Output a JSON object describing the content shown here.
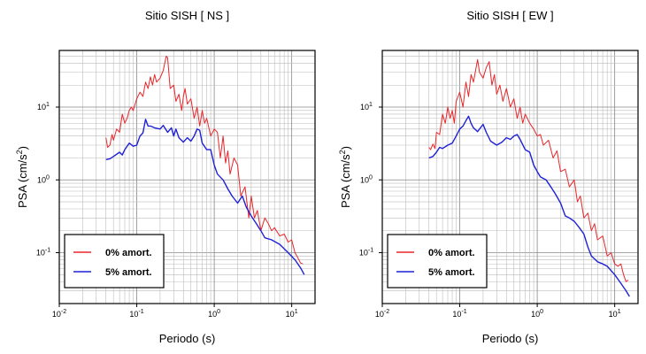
{
  "chart_data": [
    {
      "type": "line",
      "title": "Sitio SISH [ NS ]",
      "xlabel": "Periodo (s)",
      "ylabel": "PSA (cm/s",
      "ylabel_sup": "2",
      "ylabel_close": ")",
      "xscale": "log",
      "yscale": "log",
      "xlim": [
        0.01,
        20
      ],
      "ylim": [
        0.02,
        60
      ],
      "x_ticks": [
        {
          "base": "10",
          "exp": "-2"
        },
        {
          "base": "10",
          "exp": "-1"
        },
        {
          "base": "10",
          "exp": "0"
        },
        {
          "base": "10",
          "exp": "1"
        }
      ],
      "y_ticks": [
        {
          "base": "10",
          "exp": "-1"
        },
        {
          "base": "10",
          "exp": "0"
        },
        {
          "base": "10",
          "exp": "1"
        }
      ],
      "grid": true,
      "legend_position": "bottom-left",
      "series": [
        {
          "name": "0% amort.",
          "color": "#e8262a",
          "points": [
            [
              0.04,
              3.8
            ],
            [
              0.042,
              2.8
            ],
            [
              0.045,
              3
            ],
            [
              0.048,
              4.2
            ],
            [
              0.05,
              3.5
            ],
            [
              0.055,
              5
            ],
            [
              0.06,
              4.5
            ],
            [
              0.065,
              8
            ],
            [
              0.07,
              6
            ],
            [
              0.075,
              7
            ],
            [
              0.08,
              9
            ],
            [
              0.085,
              10
            ],
            [
              0.09,
              9
            ],
            [
              0.1,
              13
            ],
            [
              0.11,
              16
            ],
            [
              0.12,
              14
            ],
            [
              0.13,
              22
            ],
            [
              0.14,
              18
            ],
            [
              0.15,
              26
            ],
            [
              0.16,
              20
            ],
            [
              0.17,
              28
            ],
            [
              0.18,
              22
            ],
            [
              0.2,
              25
            ],
            [
              0.22,
              32
            ],
            [
              0.24,
              50
            ],
            [
              0.25,
              48
            ],
            [
              0.27,
              18
            ],
            [
              0.3,
              20
            ],
            [
              0.32,
              12
            ],
            [
              0.35,
              15
            ],
            [
              0.38,
              9
            ],
            [
              0.4,
              14
            ],
            [
              0.42,
              18
            ],
            [
              0.45,
              11
            ],
            [
              0.5,
              13
            ],
            [
              0.55,
              7
            ],
            [
              0.6,
              10
            ],
            [
              0.65,
              5.5
            ],
            [
              0.7,
              9
            ],
            [
              0.75,
              6
            ],
            [
              0.8,
              7
            ],
            [
              0.9,
              4
            ],
            [
              1.0,
              5
            ],
            [
              1.1,
              4.5
            ],
            [
              1.2,
              2
            ],
            [
              1.3,
              4
            ],
            [
              1.4,
              1.7
            ],
            [
              1.5,
              2.5
            ],
            [
              1.6,
              1.2
            ],
            [
              1.8,
              2
            ],
            [
              2.0,
              1.6
            ],
            [
              2.2,
              0.6
            ],
            [
              2.5,
              0.8
            ],
            [
              2.8,
              0.3
            ],
            [
              3.0,
              0.6
            ],
            [
              3.3,
              0.3
            ],
            [
              3.6,
              0.38
            ],
            [
              4.0,
              0.2
            ],
            [
              4.5,
              0.3
            ],
            [
              5.0,
              0.25
            ],
            [
              5.5,
              0.2
            ],
            [
              6.0,
              0.22
            ],
            [
              7.0,
              0.17
            ],
            [
              8.0,
              0.18
            ],
            [
              9.0,
              0.14
            ],
            [
              10.0,
              0.15
            ],
            [
              11.0,
              0.1
            ],
            [
              12.0,
              0.085
            ],
            [
              13.0,
              0.072
            ],
            [
              14.0,
              0.07
            ]
          ]
        },
        {
          "name": "5% amort.",
          "color": "#1e21d6",
          "points": [
            [
              0.04,
              1.9
            ],
            [
              0.045,
              1.95
            ],
            [
              0.05,
              2.1
            ],
            [
              0.06,
              2.4
            ],
            [
              0.065,
              2.2
            ],
            [
              0.07,
              2.6
            ],
            [
              0.08,
              3.2
            ],
            [
              0.09,
              2.9
            ],
            [
              0.1,
              3.0
            ],
            [
              0.11,
              4.0
            ],
            [
              0.12,
              4.4
            ],
            [
              0.13,
              6.8
            ],
            [
              0.14,
              5.5
            ],
            [
              0.15,
              5.5
            ],
            [
              0.17,
              5.2
            ],
            [
              0.2,
              5.0
            ],
            [
              0.22,
              5.6
            ],
            [
              0.25,
              4.5
            ],
            [
              0.28,
              5.2
            ],
            [
              0.3,
              4.0
            ],
            [
              0.32,
              5.0
            ],
            [
              0.35,
              3.8
            ],
            [
              0.4,
              3.3
            ],
            [
              0.45,
              3.8
            ],
            [
              0.5,
              3.4
            ],
            [
              0.55,
              4.0
            ],
            [
              0.6,
              5.0
            ],
            [
              0.65,
              4.8
            ],
            [
              0.7,
              3.2
            ],
            [
              0.8,
              2.6
            ],
            [
              0.9,
              2.6
            ],
            [
              1.0,
              1.6
            ],
            [
              1.1,
              1.2
            ],
            [
              1.3,
              1.0
            ],
            [
              1.5,
              0.75
            ],
            [
              1.7,
              0.6
            ],
            [
              2.0,
              0.48
            ],
            [
              2.3,
              0.6
            ],
            [
              2.6,
              0.42
            ],
            [
              3.0,
              0.32
            ],
            [
              3.5,
              0.25
            ],
            [
              4.0,
              0.2
            ],
            [
              4.5,
              0.16
            ],
            [
              5.5,
              0.15
            ],
            [
              7.0,
              0.13
            ],
            [
              9.0,
              0.1
            ],
            [
              11.0,
              0.08
            ],
            [
              13.0,
              0.062
            ],
            [
              14.5,
              0.05
            ]
          ]
        }
      ]
    },
    {
      "type": "line",
      "title": "Sitio SISH [ EW ]",
      "xlabel": "Periodo (s)",
      "ylabel": "PSA (cm/s",
      "ylabel_sup": "2",
      "ylabel_close": ")",
      "xscale": "log",
      "yscale": "log",
      "xlim": [
        0.01,
        20
      ],
      "ylim": [
        0.02,
        60
      ],
      "x_ticks": [
        {
          "base": "10",
          "exp": "-2"
        },
        {
          "base": "10",
          "exp": "-1"
        },
        {
          "base": "10",
          "exp": "0"
        },
        {
          "base": "10",
          "exp": "1"
        }
      ],
      "y_ticks": [
        {
          "base": "10",
          "exp": "-1"
        },
        {
          "base": "10",
          "exp": "0"
        },
        {
          "base": "10",
          "exp": "1"
        }
      ],
      "grid": true,
      "legend_position": "bottom-left",
      "series": [
        {
          "name": "0% amort.",
          "color": "#e8262a",
          "points": [
            [
              0.04,
              2.8
            ],
            [
              0.042,
              2.6
            ],
            [
              0.045,
              3.1
            ],
            [
              0.048,
              2.7
            ],
            [
              0.05,
              4.5
            ],
            [
              0.055,
              4.2
            ],
            [
              0.06,
              8
            ],
            [
              0.065,
              6
            ],
            [
              0.07,
              10
            ],
            [
              0.075,
              7
            ],
            [
              0.08,
              9
            ],
            [
              0.085,
              6
            ],
            [
              0.09,
              12
            ],
            [
              0.1,
              16
            ],
            [
              0.11,
              10
            ],
            [
              0.12,
              22
            ],
            [
              0.13,
              14
            ],
            [
              0.14,
              28
            ],
            [
              0.15,
              22
            ],
            [
              0.17,
              45
            ],
            [
              0.18,
              30
            ],
            [
              0.2,
              25
            ],
            [
              0.22,
              35
            ],
            [
              0.24,
              42
            ],
            [
              0.26,
              20
            ],
            [
              0.28,
              28
            ],
            [
              0.3,
              15
            ],
            [
              0.33,
              20
            ],
            [
              0.36,
              12
            ],
            [
              0.4,
              18
            ],
            [
              0.45,
              10
            ],
            [
              0.5,
              13
            ],
            [
              0.55,
              7
            ],
            [
              0.6,
              10
            ],
            [
              0.65,
              6
            ],
            [
              0.7,
              8
            ],
            [
              0.8,
              6
            ],
            [
              0.9,
              5
            ],
            [
              1.0,
              4
            ],
            [
              1.1,
              4.2
            ],
            [
              1.2,
              3
            ],
            [
              1.4,
              3.5
            ],
            [
              1.6,
              2
            ],
            [
              1.8,
              2.5
            ],
            [
              2.0,
              1.3
            ],
            [
              2.3,
              1.4
            ],
            [
              2.6,
              0.8
            ],
            [
              3.0,
              1.0
            ],
            [
              3.3,
              0.5
            ],
            [
              3.6,
              0.6
            ],
            [
              4.0,
              0.3
            ],
            [
              4.5,
              0.35
            ],
            [
              5.0,
              0.2
            ],
            [
              5.5,
              0.25
            ],
            [
              6.0,
              0.15
            ],
            [
              7.0,
              0.17
            ],
            [
              8.0,
              0.09
            ],
            [
              9.0,
              0.1
            ],
            [
              10.0,
              0.07
            ],
            [
              11.0,
              0.065
            ],
            [
              12.0,
              0.07
            ],
            [
              13.0,
              0.05
            ],
            [
              14.0,
              0.04
            ],
            [
              15.0,
              0.042
            ]
          ]
        },
        {
          "name": "5% amort.",
          "color": "#1e21d6",
          "points": [
            [
              0.04,
              2.0
            ],
            [
              0.045,
              2.1
            ],
            [
              0.05,
              2.4
            ],
            [
              0.055,
              2.8
            ],
            [
              0.06,
              2.7
            ],
            [
              0.07,
              3.0
            ],
            [
              0.08,
              3.2
            ],
            [
              0.09,
              4.0
            ],
            [
              0.1,
              5.0
            ],
            [
              0.11,
              5.5
            ],
            [
              0.12,
              6.5
            ],
            [
              0.13,
              7.5
            ],
            [
              0.14,
              6.0
            ],
            [
              0.15,
              5.2
            ],
            [
              0.17,
              4.6
            ],
            [
              0.2,
              5.8
            ],
            [
              0.22,
              4.5
            ],
            [
              0.25,
              3.4
            ],
            [
              0.3,
              3.0
            ],
            [
              0.35,
              3.3
            ],
            [
              0.4,
              3.8
            ],
            [
              0.45,
              3.6
            ],
            [
              0.5,
              4.0
            ],
            [
              0.55,
              4.2
            ],
            [
              0.6,
              3.6
            ],
            [
              0.7,
              2.6
            ],
            [
              0.8,
              2.4
            ],
            [
              0.9,
              1.6
            ],
            [
              1.0,
              1.3
            ],
            [
              1.1,
              1.1
            ],
            [
              1.3,
              1.0
            ],
            [
              1.5,
              0.8
            ],
            [
              1.7,
              0.65
            ],
            [
              2.0,
              0.48
            ],
            [
              2.3,
              0.32
            ],
            [
              2.6,
              0.3
            ],
            [
              3.0,
              0.27
            ],
            [
              3.5,
              0.22
            ],
            [
              4.0,
              0.18
            ],
            [
              4.5,
              0.12
            ],
            [
              5.0,
              0.09
            ],
            [
              6.0,
              0.075
            ],
            [
              7.0,
              0.07
            ],
            [
              8.0,
              0.065
            ],
            [
              10.0,
              0.05
            ],
            [
              12.0,
              0.038
            ],
            [
              14.0,
              0.03
            ],
            [
              15.5,
              0.025
            ]
          ]
        }
      ]
    }
  ]
}
